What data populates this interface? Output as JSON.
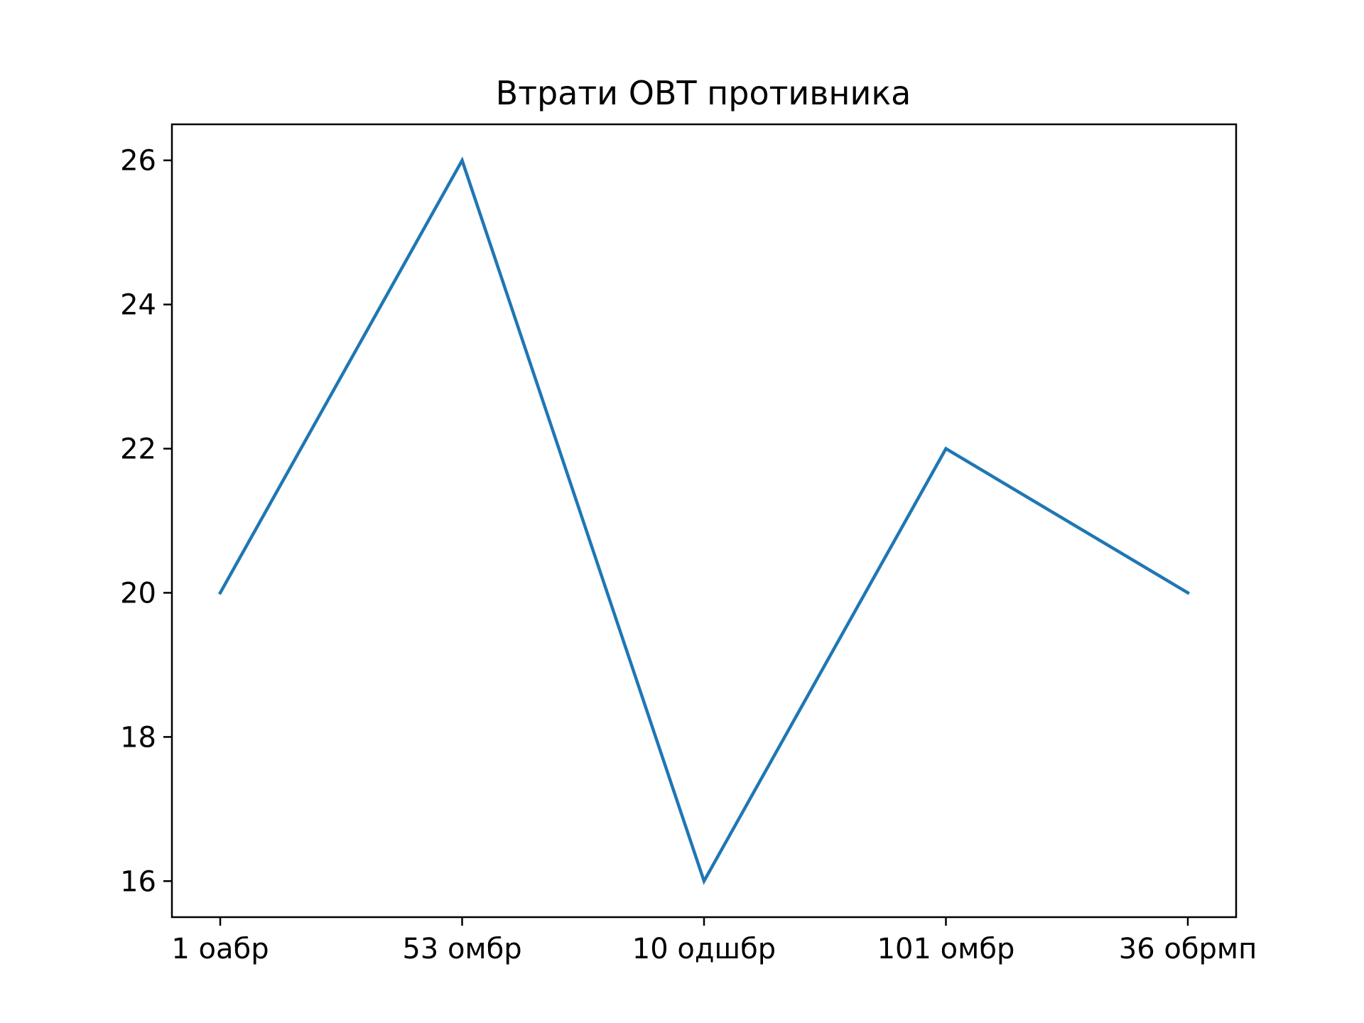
{
  "chart_data": {
    "type": "line",
    "title": "Втрати ОВТ противника",
    "xlabel": "",
    "ylabel": "",
    "categories": [
      "1 оабр",
      "53 омбр",
      "10 одшбр",
      "101 омбр",
      "36 обрмп"
    ],
    "series": [
      {
        "values": [
          20,
          26,
          16,
          22,
          20
        ]
      }
    ],
    "ylim": [
      15.5,
      26.5
    ],
    "y_ticks": [
      16,
      18,
      20,
      22,
      24,
      26
    ],
    "grid": false,
    "colors": {
      "line": "#1f77b4",
      "axes": "#000000",
      "background": "#ffffff"
    }
  }
}
